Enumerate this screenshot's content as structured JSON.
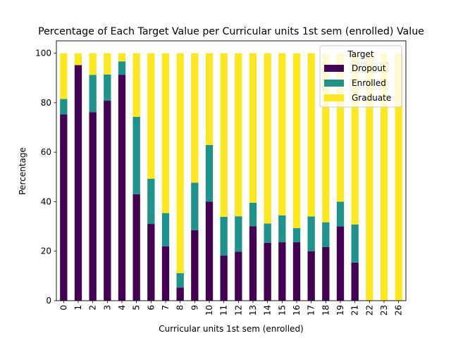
{
  "chart_data": {
    "type": "bar",
    "stacked": true,
    "title": "Percentage of Each Target Value per Curricular units 1st sem (enrolled) Value",
    "xlabel": "Curricular units 1st sem (enrolled)",
    "ylabel": "Percentage",
    "ylim": [
      0,
      105
    ],
    "yticks": [
      0,
      20,
      40,
      60,
      80,
      100
    ],
    "categories": [
      "0",
      "1",
      "2",
      "3",
      "4",
      "5",
      "6",
      "7",
      "8",
      "9",
      "10",
      "11",
      "12",
      "13",
      "14",
      "15",
      "16",
      "17",
      "18",
      "19",
      "21",
      "22",
      "23",
      "26"
    ],
    "series": [
      {
        "name": "Dropout",
        "color": "#440154",
        "values": [
          75.3,
          95.2,
          76.2,
          80.8,
          91.3,
          43.0,
          31.0,
          22.0,
          5.3,
          28.5,
          40.0,
          18.2,
          19.8,
          30.1,
          23.4,
          23.6,
          23.6,
          20.0,
          21.7,
          30.0,
          15.4,
          0,
          0,
          0
        ]
      },
      {
        "name": "Enrolled",
        "color": "#21918c",
        "values": [
          6.2,
          0,
          15.0,
          10.6,
          5.4,
          31.3,
          18.3,
          13.4,
          5.8,
          19.2,
          22.9,
          15.7,
          14.3,
          9.5,
          7.8,
          10.9,
          5.7,
          14.0,
          10.0,
          10.0,
          15.4,
          0,
          0,
          0
        ]
      },
      {
        "name": "Graduate",
        "color": "#fde725",
        "values": [
          18.5,
          4.8,
          8.8,
          8.6,
          3.3,
          25.7,
          50.7,
          64.6,
          88.9,
          52.3,
          37.1,
          66.1,
          65.9,
          60.4,
          68.8,
          65.5,
          70.7,
          66.0,
          68.3,
          60.0,
          69.2,
          100,
          100,
          100
        ]
      }
    ],
    "legend": {
      "title": "Target",
      "position": "top-right"
    },
    "grid": false
  }
}
